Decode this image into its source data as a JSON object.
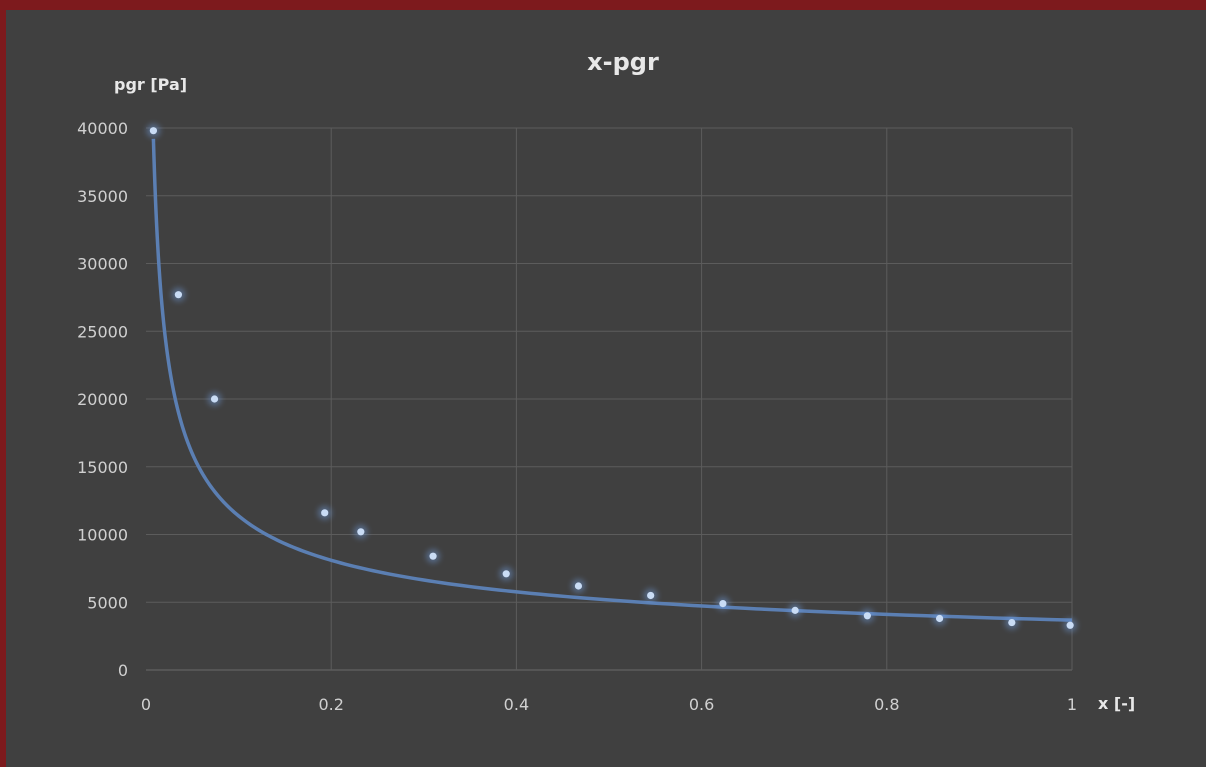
{
  "chart_data": {
    "type": "scatter",
    "title": "x-pgr",
    "xlabel": "x [-]",
    "ylabel": "pgr [Pa]",
    "xlim": [
      0,
      1
    ],
    "ylim": [
      0,
      40000
    ],
    "x_ticks": [
      "0",
      "0.2",
      "0.4",
      "0.6",
      "0.8",
      "1"
    ],
    "y_ticks": [
      "0",
      "5000",
      "10000",
      "15000",
      "20000",
      "25000",
      "30000",
      "35000",
      "40000"
    ],
    "grid": true,
    "legend": "none",
    "series": [
      {
        "x": [
          0.008,
          0.035,
          0.074,
          0.193,
          0.232,
          0.31,
          0.389,
          0.467,
          0.545,
          0.623,
          0.701,
          0.779,
          0.857,
          0.935,
          0.998
        ],
        "y": [
          39800,
          27700,
          20000,
          11600,
          10200,
          8400,
          7100,
          6200,
          5500,
          4900,
          4400,
          4000,
          3800,
          3500,
          3300
        ]
      }
    ],
    "trendline": {
      "type": "power",
      "x_range": [
        0.008,
        1
      ],
      "coefficient": 3680,
      "exponent": -0.49
    },
    "colors": {
      "background": "#404040",
      "border": "#7d1a1d",
      "markers": "#c9dcf5",
      "trendline": "#5b7fb3",
      "text": "#e8e8e8"
    }
  }
}
